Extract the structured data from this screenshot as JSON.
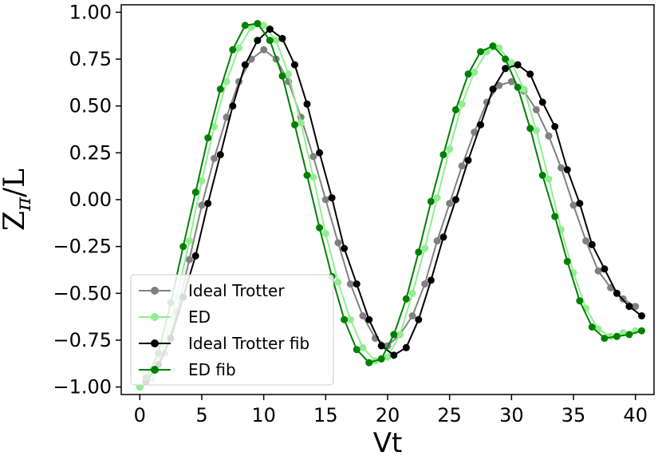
{
  "chart_data": {
    "type": "line",
    "xlabel": "Vt",
    "ylabel": "Z",
    "ylabel_sub": "π",
    "ylabel_suffix": "/L",
    "xlim": [
      -1.5,
      41.5
    ],
    "ylim": [
      -1.04,
      1.04
    ],
    "xticks": [
      0,
      5,
      10,
      15,
      20,
      25,
      30,
      35,
      40
    ],
    "xtick_labels": [
      "0",
      "5",
      "10",
      "15",
      "20",
      "25",
      "30",
      "35",
      "40"
    ],
    "yticks": [
      1.0,
      0.75,
      0.5,
      0.25,
      0.0,
      -0.25,
      -0.5,
      -0.75,
      -1.0
    ],
    "ytick_labels": [
      "1.00",
      "0.75",
      "0.50",
      "0.25",
      "0.00",
      "−0.25",
      "−0.50",
      "−0.75",
      "−1.00"
    ],
    "legend_position": "lower-left",
    "series": [
      {
        "name": "Ideal Trotter",
        "color": "#808080",
        "x": [
          0,
          1,
          2,
          3,
          4,
          5,
          6,
          7,
          8,
          9,
          10,
          11,
          12,
          13,
          14,
          15,
          16,
          17,
          18,
          19,
          20,
          21,
          22,
          23,
          24,
          25,
          26,
          27,
          28,
          29,
          30,
          31,
          32,
          33,
          34,
          35,
          36,
          37,
          38,
          39,
          40
        ],
        "values": [
          -1.0,
          -0.95,
          -0.82,
          -0.6,
          -0.32,
          -0.03,
          0.22,
          0.44,
          0.63,
          0.75,
          0.8,
          0.75,
          0.63,
          0.44,
          0.23,
          0.0,
          -0.23,
          -0.45,
          -0.62,
          -0.74,
          -0.78,
          -0.72,
          -0.62,
          -0.45,
          -0.22,
          -0.02,
          0.18,
          0.36,
          0.52,
          0.61,
          0.63,
          0.58,
          0.48,
          0.34,
          0.17,
          -0.03,
          -0.22,
          -0.38,
          -0.47,
          -0.53,
          -0.57
        ]
      },
      {
        "name": "ED",
        "color": "#90ee90",
        "x": [
          0,
          1,
          2,
          3,
          4,
          5,
          6,
          7,
          8,
          9,
          10,
          11,
          12,
          13,
          14,
          15,
          16,
          17,
          18,
          19,
          20,
          21,
          22,
          23,
          24,
          25,
          26,
          27,
          28,
          29,
          30,
          31,
          32,
          33,
          34,
          35,
          36,
          37,
          38,
          39,
          40
        ],
        "values": [
          -1.0,
          -0.94,
          -0.77,
          -0.52,
          -0.22,
          0.1,
          0.39,
          0.63,
          0.81,
          0.92,
          0.93,
          0.85,
          0.67,
          0.41,
          0.12,
          -0.18,
          -0.44,
          -0.64,
          -0.79,
          -0.86,
          -0.84,
          -0.72,
          -0.5,
          -0.26,
          0.01,
          0.27,
          0.51,
          0.68,
          0.79,
          0.81,
          0.73,
          0.59,
          0.37,
          0.11,
          -0.16,
          -0.39,
          -0.58,
          -0.69,
          -0.73,
          -0.71,
          -0.7
        ]
      },
      {
        "name": "Ideal Trotter fib",
        "color": "#000000",
        "x": [
          0.5,
          1.5,
          2.5,
          3.5,
          4.5,
          5.5,
          6.5,
          7.5,
          8.5,
          9.5,
          10.5,
          11.5,
          12.5,
          13.5,
          14.5,
          15.5,
          16.5,
          17.5,
          18.5,
          19.5,
          20.5,
          21.5,
          22.5,
          23.5,
          24.5,
          25.5,
          26.5,
          27.5,
          28.5,
          29.5,
          30.5,
          31.5,
          32.5,
          33.5,
          34.5,
          35.5,
          36.5,
          37.5,
          38.5,
          39.5,
          40.5
        ],
        "values": [
          -0.97,
          -0.88,
          -0.74,
          -0.52,
          -0.3,
          -0.02,
          0.24,
          0.5,
          0.72,
          0.85,
          0.91,
          0.86,
          0.72,
          0.51,
          0.25,
          0.01,
          -0.26,
          -0.45,
          -0.64,
          -0.78,
          -0.83,
          -0.79,
          -0.64,
          -0.43,
          -0.2,
          0.0,
          0.21,
          0.4,
          0.59,
          0.7,
          0.72,
          0.67,
          0.52,
          0.39,
          0.16,
          -0.02,
          -0.24,
          -0.37,
          -0.5,
          -0.57,
          -0.62
        ]
      },
      {
        "name": "ED fib",
        "color": "#008000",
        "x": [
          0.5,
          1.5,
          2.5,
          3.5,
          4.5,
          5.5,
          6.5,
          7.5,
          8.5,
          9.5,
          10.5,
          11.5,
          12.5,
          13.5,
          14.5,
          15.5,
          16.5,
          17.5,
          18.5,
          19.5,
          20.5,
          21.5,
          22.5,
          23.5,
          24.5,
          25.5,
          26.5,
          27.5,
          28.5,
          29.5,
          30.5,
          31.5,
          32.5,
          33.5,
          34.5,
          35.5,
          36.5,
          37.5,
          38.5,
          39.5,
          40.5
        ],
        "values": [
          -0.95,
          -0.82,
          -0.55,
          -0.25,
          0.04,
          0.33,
          0.59,
          0.8,
          0.93,
          0.94,
          0.85,
          0.66,
          0.4,
          0.13,
          -0.15,
          -0.41,
          -0.64,
          -0.8,
          -0.87,
          -0.85,
          -0.72,
          -0.53,
          -0.28,
          -0.01,
          0.24,
          0.48,
          0.67,
          0.79,
          0.82,
          0.75,
          0.6,
          0.38,
          0.13,
          -0.09,
          -0.33,
          -0.54,
          -0.68,
          -0.74,
          -0.73,
          -0.72,
          -0.7
        ]
      }
    ]
  }
}
